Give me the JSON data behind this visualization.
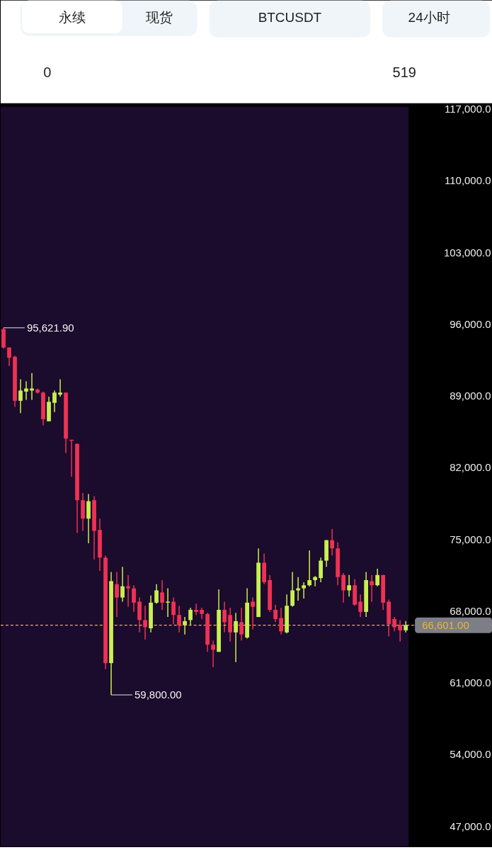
{
  "chart_data": [
    {
      "type": "other",
      "annotations": [
        "永续",
        "现货",
        "BTCUSDT",
        "24小时",
        "0",
        "519"
      ]
    },
    {
      "type": "candlestick",
      "categories": [
        null,
        null,
        null,
        null,
        null,
        null,
        null,
        null,
        null,
        null,
        null,
        null,
        null,
        null,
        null,
        null,
        null,
        null,
        null,
        null,
        null,
        null,
        null,
        null,
        null,
        null,
        null,
        null,
        null,
        null,
        null,
        null,
        null,
        null,
        null,
        null,
        null,
        null,
        null,
        null,
        null,
        null,
        null,
        null,
        null,
        null,
        null,
        null,
        null,
        null,
        null,
        null,
        null,
        null,
        null,
        null,
        null,
        null,
        null,
        null,
        null,
        null,
        null,
        null,
        null,
        null,
        null,
        null,
        null,
        null,
        null,
        null
      ],
      "ohlc": [
        [
          95500,
          95621.9,
          93600,
          93700
        ],
        [
          93700,
          93700,
          91900,
          92700
        ],
        [
          92800,
          92900,
          87900,
          88500
        ],
        [
          88500,
          90600,
          87300,
          89500
        ],
        [
          89400,
          90400,
          88600,
          89700
        ],
        [
          89500,
          91200,
          88600,
          89700
        ],
        [
          89600,
          89700,
          89200,
          89300
        ],
        [
          89300,
          89400,
          86100,
          86700
        ],
        [
          86500,
          88900,
          86500,
          88400
        ],
        [
          88300,
          89500,
          87400,
          89300
        ],
        [
          89100,
          90600,
          88900,
          89300
        ],
        [
          89300,
          89300,
          83400,
          84800
        ],
        [
          84700,
          84700,
          81100,
          84600
        ],
        [
          84300,
          84300,
          75600,
          78800
        ],
        [
          78800,
          79500,
          75800,
          77000
        ],
        [
          77000,
          79400,
          74600,
          78700
        ],
        [
          78800,
          79200,
          73000,
          75800
        ],
        [
          75900,
          77000,
          71900,
          73200
        ],
        [
          73200,
          73400,
          62300,
          62900
        ],
        [
          62900,
          71800,
          59800,
          70900
        ],
        [
          70600,
          71800,
          67400,
          69300
        ],
        [
          69300,
          72300,
          68900,
          70400
        ],
        [
          70400,
          71500,
          68400,
          70200
        ],
        [
          70200,
          70500,
          67900,
          68800
        ],
        [
          68900,
          69300,
          65900,
          67100
        ],
        [
          67100,
          68500,
          65200,
          66400
        ],
        [
          66300,
          69500,
          65900,
          68800
        ],
        [
          68800,
          70600,
          68700,
          70000
        ],
        [
          69800,
          71000,
          68100,
          68800
        ],
        [
          68800,
          70200,
          67400,
          68900
        ],
        [
          68900,
          69300,
          66700,
          67600
        ],
        [
          67600,
          68500,
          65900,
          66600
        ],
        [
          66600,
          67400,
          65700,
          67000
        ],
        [
          67100,
          68300,
          66600,
          68100
        ],
        [
          68100,
          68700,
          67600,
          67900
        ],
        [
          68100,
          68300,
          67200,
          67700
        ],
        [
          67700,
          67800,
          64000,
          64700
        ],
        [
          64700,
          65100,
          62500,
          64200
        ],
        [
          64000,
          70100,
          64000,
          68100
        ],
        [
          68100,
          68900,
          65900,
          66900
        ],
        [
          67600,
          68300,
          65000,
          65900
        ],
        [
          65900,
          67800,
          63000,
          67000
        ],
        [
          66900,
          68300,
          65100,
          65700
        ],
        [
          65400,
          70200,
          65300,
          68800
        ],
        [
          68900,
          69300,
          66200,
          68400
        ],
        [
          67400,
          74100,
          67400,
          72700
        ],
        [
          72700,
          73600,
          70600,
          70800
        ],
        [
          71000,
          71500,
          67900,
          68100
        ],
        [
          68100,
          68600,
          66900,
          67200
        ],
        [
          67300,
          68300,
          65700,
          66000
        ],
        [
          65900,
          69600,
          65800,
          68500
        ],
        [
          68500,
          71800,
          68400,
          70000
        ],
        [
          70000,
          71300,
          69000,
          70200
        ],
        [
          70200,
          70800,
          69200,
          70500
        ],
        [
          70500,
          73900,
          70400,
          71000
        ],
        [
          71000,
          71400,
          70400,
          71300
        ],
        [
          71200,
          73200,
          70800,
          72900
        ],
        [
          72900,
          74900,
          72300,
          74900
        ],
        [
          74900,
          76000,
          73400,
          74100
        ],
        [
          74100,
          74700,
          70500,
          71300
        ],
        [
          71500,
          71700,
          68800,
          70000
        ],
        [
          70000,
          71500,
          69400,
          70500
        ],
        [
          70500,
          71100,
          68500,
          68600
        ],
        [
          68900,
          69600,
          67400,
          67900
        ],
        [
          67900,
          71800,
          67400,
          71000
        ],
        [
          70900,
          71500,
          68900,
          70500
        ],
        [
          70500,
          72100,
          70400,
          71500
        ],
        [
          71500,
          71500,
          68100,
          68800
        ],
        [
          68900,
          69100,
          65500,
          66700
        ],
        [
          67200,
          67400,
          66000,
          66400
        ],
        [
          66600,
          67100,
          65000,
          66100
        ],
        [
          66100,
          67000,
          65900,
          66601
        ]
      ],
      "colors": [
        "#ef3155",
        "#ef3155",
        "#ef3155",
        "#c8f050",
        "#c8f050",
        "#c8f050",
        "#ef3155",
        "#ef3155",
        "#c8f050",
        "#c8f050",
        "#c8f050",
        "#ef3155",
        "#ef3155",
        "#ef3155",
        "#ef3155",
        "#c8f050",
        "#ef3155",
        "#ef3155",
        "#ef3155",
        "#c8f050",
        "#ef3155",
        "#c8f050",
        "#ef3155",
        "#ef3155",
        "#ef3155",
        "#ef3155",
        "#c8f050",
        "#c8f050",
        "#ef3155",
        "#c8f050",
        "#ef3155",
        "#ef3155",
        "#c8f050",
        "#c8f050",
        "#ef3155",
        "#ef3155",
        "#ef3155",
        "#ef3155",
        "#c8f050",
        "#ef3155",
        "#ef3155",
        "#c8f050",
        "#ef3155",
        "#c8f050",
        "#ef3155",
        "#c8f050",
        "#ef3155",
        "#ef3155",
        "#ef3155",
        "#ef3155",
        "#c8f050",
        "#c8f050",
        "#c8f050",
        "#c8f050",
        "#c8f050",
        "#c8f050",
        "#c8f050",
        "#c8f050",
        "#ef3155",
        "#ef3155",
        "#ef3155",
        "#c8f050",
        "#ef3155",
        "#ef3155",
        "#c8f050",
        "#ef3155",
        "#c8f050",
        "#ef3155",
        "#ef3155",
        "#ef3155",
        "#ef3155",
        "#c8f050"
      ],
      "ylim": [
        45000,
        117200
      ],
      "yticks": [
        {
          "value": 47000,
          "label": "47,000.0"
        },
        {
          "value": 54000,
          "label": "54,000.0"
        },
        {
          "value": 61000,
          "label": "61,000.0"
        },
        {
          "value": 68000,
          "label": "68,000.0"
        },
        {
          "value": 75000,
          "label": "75,000.0"
        },
        {
          "value": 82000,
          "label": "82,000.0"
        },
        {
          "value": 89000,
          "label": "89,000.0"
        },
        {
          "value": 96000,
          "label": "96,000.0"
        },
        {
          "value": 103000,
          "label": "103,000.0"
        },
        {
          "value": 110000,
          "label": "110,000.0"
        },
        {
          "value": 117000,
          "label": "117,000.0"
        }
      ],
      "tick_labels": "y",
      "ref_lines": [
        {
          "axis": "y",
          "value": 66601,
          "label": "66,601.00",
          "color": "#e8b43a",
          "line_style": "dashed"
        }
      ],
      "annotations": [
        "95,621.90",
        "59,800.00"
      ]
    }
  ]
}
